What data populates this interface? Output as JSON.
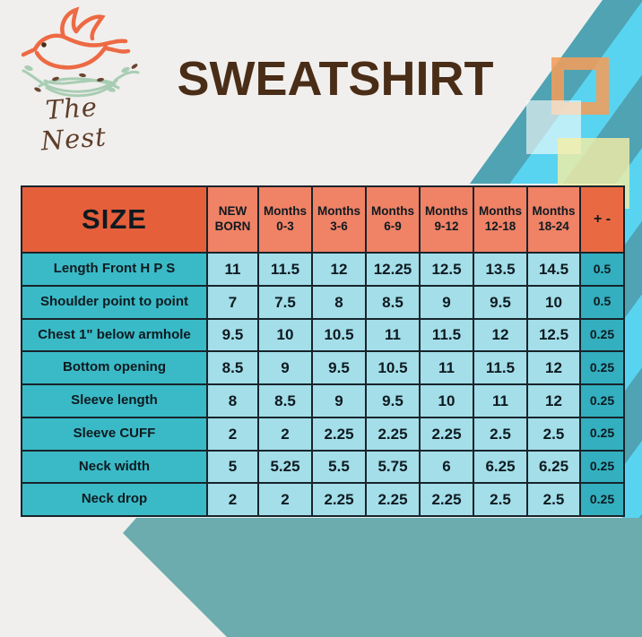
{
  "brand": {
    "name": "The Nest"
  },
  "page_title": "SWEATSHIRT",
  "table": {
    "corner_label": "SIZE",
    "columns": [
      {
        "lines": [
          "NEW",
          "BORN"
        ]
      },
      {
        "lines": [
          "Months",
          "0-3"
        ]
      },
      {
        "lines": [
          "Months",
          "3-6"
        ]
      },
      {
        "lines": [
          "Months",
          "6-9"
        ]
      },
      {
        "lines": [
          "Months",
          "9-12"
        ]
      },
      {
        "lines": [
          "Months",
          "12-18"
        ]
      },
      {
        "lines": [
          "Months",
          "18-24"
        ]
      },
      {
        "lines": [
          "+ -"
        ]
      }
    ],
    "rows": [
      {
        "label": "Length Front H P S",
        "values": [
          "11",
          "11.5",
          "12",
          "12.25",
          "12.5",
          "13.5",
          "14.5",
          "0.5"
        ]
      },
      {
        "label": "Shoulder point to point",
        "values": [
          "7",
          "7.5",
          "8",
          "8.5",
          "9",
          "9.5",
          "10",
          "0.5"
        ]
      },
      {
        "label": "Chest 1\" below armhole",
        "values": [
          "9.5",
          "10",
          "10.5",
          "11",
          "11.5",
          "12",
          "12.5",
          "0.25"
        ]
      },
      {
        "label": "Bottom opening",
        "values": [
          "8.5",
          "9",
          "9.5",
          "10.5",
          "11",
          "11.5",
          "12",
          "0.25"
        ]
      },
      {
        "label": "Sleeve length",
        "values": [
          "8",
          "8.5",
          "9",
          "9.5",
          "10",
          "11",
          "12",
          "0.25"
        ]
      },
      {
        "label": "Sleeve CUFF",
        "values": [
          "2",
          "2",
          "2.25",
          "2.25",
          "2.25",
          "2.5",
          "2.5",
          "0.25"
        ]
      },
      {
        "label": "Neck width",
        "values": [
          "5",
          "5.25",
          "5.5",
          "5.75",
          "6",
          "6.25",
          "6.25",
          "0.25"
        ]
      },
      {
        "label": "Neck drop",
        "values": [
          "2",
          "2",
          "2.25",
          "2.25",
          "2.25",
          "2.5",
          "2.5",
          "0.25"
        ]
      }
    ]
  },
  "colors": {
    "title_brown": "#4A2D17",
    "header_orange": "#E55F3B",
    "header_salmon": "#F08266",
    "tolerance_header_orange": "#E96A42",
    "label_teal": "#3ABAC6",
    "value_blue": "#A3DEE9",
    "tolerance_teal": "#33AFBF",
    "stripe_cyan": "#58D4F1",
    "stripe_teal": "#4FA3B3",
    "bottom_teal": "#6CACAE",
    "logo_bird_orange": "#ED6A44",
    "logo_nest_green": "#A9CDB4",
    "logo_brown": "#5E3E2B",
    "background": "#F0EFED"
  }
}
